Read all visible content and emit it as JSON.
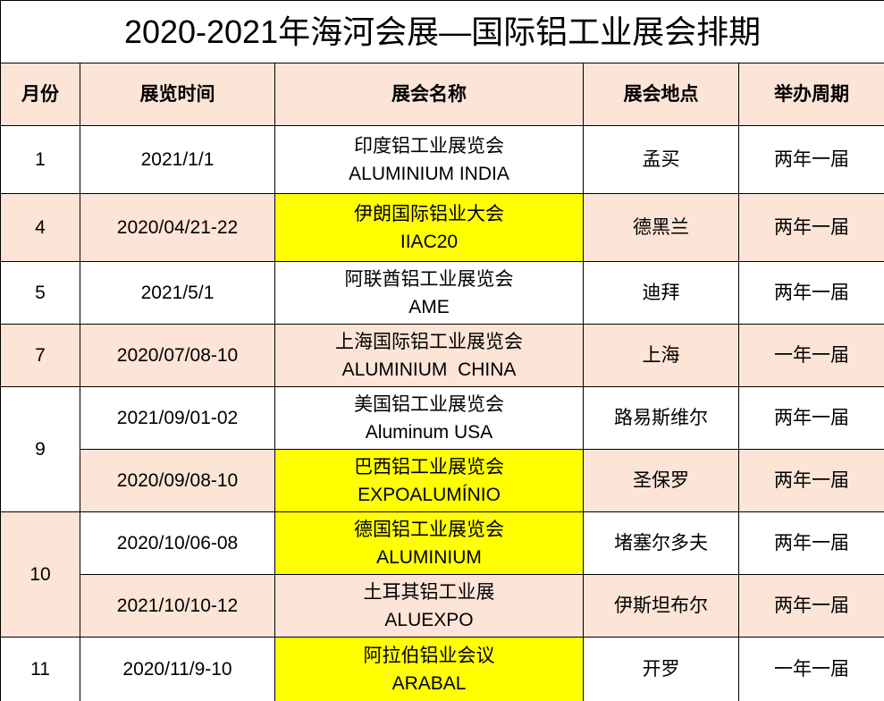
{
  "title": "2020-2021年海河会展—国际铝工业展会排期",
  "headers": [
    "月份",
    "展览时间",
    "展会名称",
    "展会地点",
    "举办周期"
  ],
  "rows": [
    {
      "month": "1",
      "date": "2021/1/1",
      "name_cn": "印度铝工业展览会",
      "name_en": "ALUMINIUM INDIA",
      "place": "孟买",
      "cycle": "两年一届",
      "highlight": false
    },
    {
      "month": "4",
      "date": "2020/04/21-22",
      "name_cn": "伊朗国际铝业大会",
      "name_en": "IIAC20",
      "place": "德黑兰",
      "cycle": "两年一届",
      "highlight": true
    },
    {
      "month": "5",
      "date": "2021/5/1",
      "name_cn": "阿联酋铝工业展览会",
      "name_en": "AME",
      "place": "迪拜",
      "cycle": "两年一届",
      "highlight": false
    },
    {
      "month": "7",
      "date": "2020/07/08-10",
      "name_cn": "上海国际铝工业展览会",
      "name_en": "ALUMINIUM  CHINA",
      "place": "上海",
      "cycle": "一年一届",
      "highlight": false
    },
    {
      "month": "9",
      "date": "2021/09/01-02",
      "name_cn": "美国铝工业展览会",
      "name_en": "Aluminum USA",
      "place": "路易斯维尔",
      "cycle": "两年一届",
      "highlight": false
    },
    {
      "month": "9",
      "date": "2020/09/08-10",
      "name_cn": "巴西铝工业展览会",
      "name_en": "EXPOALUMÍNIO",
      "place": "圣保罗",
      "cycle": "两年一届",
      "highlight": true
    },
    {
      "month": "10",
      "date": "2020/10/06-08",
      "name_cn": "德国铝工业展览会",
      "name_en": "ALUMINIUM",
      "place": "堵塞尔多夫",
      "cycle": "两年一届",
      "highlight": true
    },
    {
      "month": "10",
      "date": "2021/10/10-12",
      "name_cn": "土耳其铝工业展",
      "name_en": "ALUEXPO",
      "place": "伊斯坦布尔",
      "cycle": "两年一届",
      "highlight": false
    },
    {
      "month": "11",
      "date": "2020/11/9-10",
      "name_cn": "阿拉伯铝业会议",
      "name_en": "ARABAL",
      "place": "开罗",
      "cycle": "一年一届",
      "highlight": true
    }
  ],
  "colors": {
    "header": "#fce4d6",
    "alt_row": "#fce4d6",
    "highlight": "#ffff00"
  }
}
